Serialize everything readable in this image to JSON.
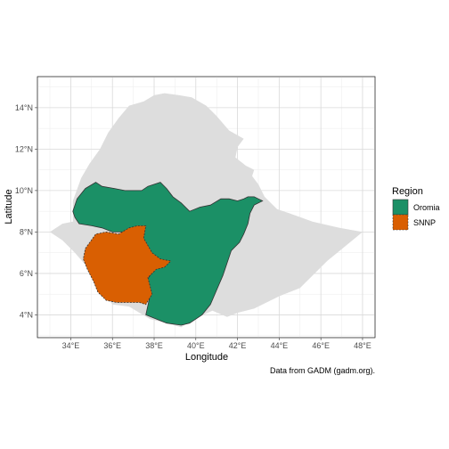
{
  "chart_data": {
    "type": "map",
    "title": "",
    "xlabel": "Longitude",
    "ylabel": "Latitude",
    "xlim": [
      32.4,
      48.6
    ],
    "ylim": [
      2.9,
      15.5
    ],
    "x_ticks": [
      {
        "value": 34,
        "label": "34°E"
      },
      {
        "value": 36,
        "label": "36°E"
      },
      {
        "value": 38,
        "label": "38°E"
      },
      {
        "value": 40,
        "label": "40°E"
      },
      {
        "value": 42,
        "label": "42°E"
      },
      {
        "value": 44,
        "label": "44°E"
      },
      {
        "value": 46,
        "label": "46°E"
      },
      {
        "value": 48,
        "label": "48°E"
      }
    ],
    "y_ticks": [
      {
        "value": 4,
        "label": "4°N"
      },
      {
        "value": 6,
        "label": "6°N"
      },
      {
        "value": 8,
        "label": "8°N"
      },
      {
        "value": 10,
        "label": "10°N"
      },
      {
        "value": 12,
        "label": "12°N"
      },
      {
        "value": 14,
        "label": "14°N"
      }
    ],
    "grid": true,
    "background_country": {
      "name": "Ethiopia",
      "color": "#dddddd"
    },
    "legend": {
      "title": "Region",
      "position": "right",
      "entries": [
        {
          "label": "Oromia",
          "color": "#1b9066"
        },
        {
          "label": "SNNP",
          "color": "#d95f02"
        }
      ]
    },
    "caption": "Data from GADM (gadm.org).",
    "regions": {
      "ethiopia": [
        [
          33.0,
          8.0
        ],
        [
          33.6,
          8.4
        ],
        [
          34.1,
          8.5
        ],
        [
          34.1,
          9.5
        ],
        [
          34.5,
          10.6
        ],
        [
          34.9,
          11.3
        ],
        [
          35.4,
          12.0
        ],
        [
          35.8,
          12.8
        ],
        [
          36.3,
          13.5
        ],
        [
          36.8,
          14.1
        ],
        [
          37.5,
          14.3
        ],
        [
          38.0,
          14.6
        ],
        [
          38.5,
          14.7
        ],
        [
          39.2,
          14.6
        ],
        [
          39.8,
          14.5
        ],
        [
          40.5,
          14.1
        ],
        [
          41.0,
          13.6
        ],
        [
          41.6,
          12.9
        ],
        [
          42.3,
          12.5
        ],
        [
          42.0,
          12.1
        ],
        [
          41.9,
          11.6
        ],
        [
          42.4,
          11.2
        ],
        [
          42.8,
          11.0
        ],
        [
          42.7,
          10.7
        ],
        [
          43.0,
          10.3
        ],
        [
          43.3,
          9.7
        ],
        [
          43.9,
          9.1
        ],
        [
          44.5,
          8.9
        ],
        [
          45.6,
          8.5
        ],
        [
          46.9,
          8.2
        ],
        [
          48.0,
          8.0
        ],
        [
          46.3,
          6.6
        ],
        [
          45.0,
          5.3
        ],
        [
          44.0,
          4.9
        ],
        [
          42.8,
          4.3
        ],
        [
          42.0,
          4.1
        ],
        [
          41.5,
          3.9
        ],
        [
          40.8,
          4.2
        ],
        [
          39.9,
          3.8
        ],
        [
          39.3,
          3.4
        ],
        [
          38.6,
          3.6
        ],
        [
          37.8,
          3.8
        ],
        [
          36.8,
          4.4
        ],
        [
          36.0,
          4.5
        ],
        [
          35.5,
          5.2
        ],
        [
          35.2,
          5.6
        ],
        [
          34.8,
          6.3
        ],
        [
          34.2,
          7.0
        ],
        [
          33.6,
          7.6
        ]
      ],
      "oromia": [
        [
          34.1,
          9.0
        ],
        [
          34.3,
          9.6
        ],
        [
          34.7,
          10.1
        ],
        [
          35.2,
          10.4
        ],
        [
          35.5,
          10.2
        ],
        [
          36.1,
          10.1
        ],
        [
          36.6,
          10.0
        ],
        [
          37.0,
          10.0
        ],
        [
          37.4,
          10.0
        ],
        [
          37.7,
          10.2
        ],
        [
          38.3,
          10.4
        ],
        [
          38.6,
          10.1
        ],
        [
          38.9,
          9.7
        ],
        [
          39.3,
          9.4
        ],
        [
          39.7,
          9.0
        ],
        [
          40.2,
          9.2
        ],
        [
          40.7,
          9.3
        ],
        [
          41.2,
          9.6
        ],
        [
          41.6,
          9.6
        ],
        [
          42.0,
          9.5
        ],
        [
          42.3,
          9.6
        ],
        [
          42.5,
          9.7
        ],
        [
          42.8,
          9.7
        ],
        [
          43.0,
          9.6
        ],
        [
          43.2,
          9.5
        ],
        [
          42.8,
          9.3
        ],
        [
          42.6,
          8.9
        ],
        [
          42.5,
          8.4
        ],
        [
          42.3,
          7.9
        ],
        [
          42.1,
          7.5
        ],
        [
          41.7,
          7.1
        ],
        [
          41.5,
          6.5
        ],
        [
          41.3,
          5.9
        ],
        [
          41.0,
          5.2
        ],
        [
          40.7,
          4.5
        ],
        [
          40.3,
          4.0
        ],
        [
          39.7,
          3.6
        ],
        [
          39.3,
          3.5
        ],
        [
          38.6,
          3.6
        ],
        [
          37.6,
          4.0
        ],
        [
          37.8,
          4.9
        ],
        [
          37.6,
          5.6
        ],
        [
          38.0,
          6.2
        ],
        [
          37.8,
          7.0
        ],
        [
          37.5,
          7.6
        ],
        [
          37.1,
          8.2
        ],
        [
          36.5,
          8.0
        ],
        [
          36.0,
          8.0
        ],
        [
          35.5,
          8.2
        ],
        [
          35.0,
          8.3
        ],
        [
          34.4,
          8.4
        ],
        [
          34.2,
          8.7
        ]
      ],
      "snnp": [
        [
          34.7,
          7.2
        ],
        [
          35.2,
          7.9
        ],
        [
          35.7,
          8.0
        ],
        [
          36.3,
          7.9
        ],
        [
          36.8,
          8.2
        ],
        [
          37.2,
          8.3
        ],
        [
          37.6,
          8.3
        ],
        [
          37.5,
          7.7
        ],
        [
          37.9,
          7.0
        ],
        [
          38.3,
          6.7
        ],
        [
          38.8,
          6.6
        ],
        [
          38.5,
          6.3
        ],
        [
          38.1,
          6.2
        ],
        [
          37.7,
          5.8
        ],
        [
          37.9,
          5.0
        ],
        [
          37.6,
          4.5
        ],
        [
          37.3,
          4.6
        ],
        [
          36.8,
          4.6
        ],
        [
          36.2,
          4.6
        ],
        [
          35.7,
          4.7
        ],
        [
          35.3,
          5.1
        ],
        [
          35.1,
          5.6
        ],
        [
          34.8,
          6.2
        ],
        [
          34.6,
          6.7
        ]
      ]
    }
  }
}
